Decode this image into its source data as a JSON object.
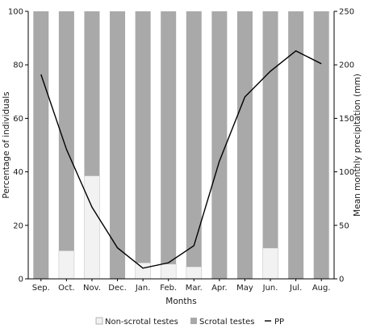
{
  "chart_data": {
    "type": "bar",
    "stacked": true,
    "categories": [
      "Sep.",
      "Oct.",
      "Nov.",
      "Dec.",
      "Jan.",
      "Feb.",
      "Mar.",
      "Apr.",
      "May",
      "Jun.",
      "Jul.",
      "Aug."
    ],
    "xlabel": "Months",
    "ylabel_left": "Percentage of individuals",
    "ylabel_right": "Mean monthly precipitation (mm)",
    "ylim_left": [
      0,
      100
    ],
    "ylim_right": [
      0,
      250
    ],
    "yticks_left": [
      0,
      20,
      40,
      60,
      80,
      100
    ],
    "yticks_right": [
      0,
      50,
      100,
      150,
      200,
      250
    ],
    "series": [
      {
        "name": "Non-scrotal testes",
        "axis": "left",
        "color": "#f2f2f2",
        "values": [
          0,
          10.5,
          38.5,
          0,
          6,
          5.5,
          4.5,
          0,
          0,
          11.5,
          0,
          0
        ]
      },
      {
        "name": "Scrotal testes",
        "axis": "left",
        "color": "#a9a9a9",
        "values": [
          100,
          89.5,
          61.5,
          100,
          94,
          94.5,
          95.5,
          100,
          100,
          88.5,
          100,
          100
        ]
      },
      {
        "name": "PP",
        "type": "line",
        "axis": "right",
        "color": "#000000",
        "values": [
          191,
          121,
          67,
          29,
          10,
          15,
          31,
          110,
          170,
          194,
          213,
          201
        ]
      }
    ],
    "legend_position": "bottom-center",
    "grid": false
  }
}
